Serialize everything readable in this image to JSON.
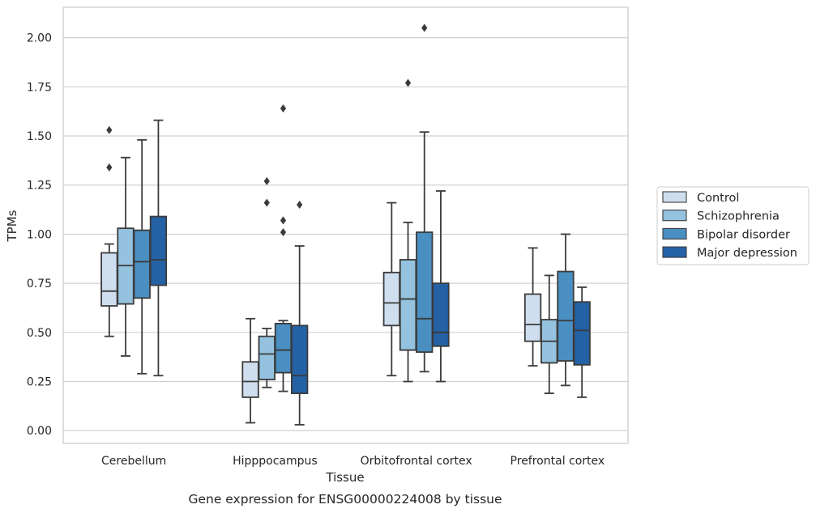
{
  "chart_data": {
    "type": "box",
    "xlabel": "Tissue",
    "ylabel": "TPMs",
    "caption": "Gene expression for ENSG00000224008 by tissue",
    "ylim": [
      -0.065,
      2.155
    ],
    "yticks": [
      "0.00",
      "0.25",
      "0.50",
      "0.75",
      "1.00",
      "1.25",
      "1.50",
      "1.75",
      "2.00"
    ],
    "grid": true,
    "legend": "right",
    "categories": [
      "Cerebellum",
      "Hipppocampus",
      "Orbitofrontal cortex",
      "Prefrontal cortex"
    ],
    "colors": [
      "#cfdeef",
      "#95c2df",
      "#4a8fc2",
      "#2461a5"
    ],
    "series": [
      {
        "name": "Control",
        "boxes": [
          {
            "whislo": 0.48,
            "q1": 0.635,
            "med": 0.71,
            "q3": 0.905,
            "whishi": 0.95,
            "fliers": [
              1.34,
              1.53
            ]
          },
          {
            "whislo": 0.04,
            "q1": 0.17,
            "med": 0.25,
            "q3": 0.35,
            "whishi": 0.57,
            "fliers": []
          },
          {
            "whislo": 0.28,
            "q1": 0.535,
            "med": 0.65,
            "q3": 0.805,
            "whishi": 1.16,
            "fliers": []
          },
          {
            "whislo": 0.33,
            "q1": 0.455,
            "med": 0.54,
            "q3": 0.695,
            "whishi": 0.93,
            "fliers": []
          }
        ]
      },
      {
        "name": "Schizophrenia",
        "boxes": [
          {
            "whislo": 0.38,
            "q1": 0.645,
            "med": 0.84,
            "q3": 1.03,
            "whishi": 1.39,
            "fliers": []
          },
          {
            "whislo": 0.22,
            "q1": 0.26,
            "med": 0.39,
            "q3": 0.48,
            "whishi": 0.52,
            "fliers": [
              1.16,
              1.27
            ]
          },
          {
            "whislo": 0.25,
            "q1": 0.41,
            "med": 0.67,
            "q3": 0.87,
            "whishi": 1.06,
            "fliers": [
              1.77
            ]
          },
          {
            "whislo": 0.19,
            "q1": 0.345,
            "med": 0.455,
            "q3": 0.565,
            "whishi": 0.79,
            "fliers": []
          }
        ]
      },
      {
        "name": "Bipolar disorder",
        "boxes": [
          {
            "whislo": 0.29,
            "q1": 0.675,
            "med": 0.86,
            "q3": 1.02,
            "whishi": 1.48,
            "fliers": []
          },
          {
            "whislo": 0.2,
            "q1": 0.295,
            "med": 0.41,
            "q3": 0.545,
            "whishi": 0.56,
            "fliers": [
              1.01,
              1.07,
              1.64
            ]
          },
          {
            "whislo": 0.3,
            "q1": 0.4,
            "med": 0.57,
            "q3": 1.01,
            "whishi": 1.52,
            "fliers": [
              2.05
            ]
          },
          {
            "whislo": 0.23,
            "q1": 0.355,
            "med": 0.56,
            "q3": 0.81,
            "whishi": 1.0,
            "fliers": []
          }
        ]
      },
      {
        "name": "Major depression",
        "boxes": [
          {
            "whislo": 0.28,
            "q1": 0.74,
            "med": 0.87,
            "q3": 1.09,
            "whishi": 1.58,
            "fliers": []
          },
          {
            "whislo": 0.03,
            "q1": 0.19,
            "med": 0.28,
            "q3": 0.535,
            "whishi": 0.94,
            "fliers": [
              1.15
            ]
          },
          {
            "whislo": 0.25,
            "q1": 0.43,
            "med": 0.5,
            "q3": 0.75,
            "whishi": 1.22,
            "fliers": []
          },
          {
            "whislo": 0.17,
            "q1": 0.335,
            "med": 0.51,
            "q3": 0.655,
            "whishi": 0.73,
            "fliers": []
          }
        ]
      }
    ]
  }
}
